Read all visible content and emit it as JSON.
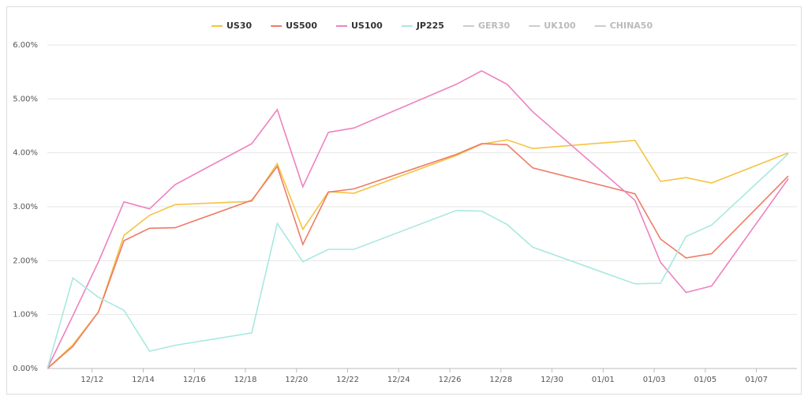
{
  "chart_data": {
    "type": "line",
    "x": [
      "12/10",
      "12/11",
      "12/12",
      "12/13",
      "12/14",
      "12/15",
      "12/18",
      "12/19",
      "12/20",
      "12/21",
      "12/22",
      "12/26",
      "12/27",
      "12/28",
      "12/29",
      "01/02",
      "01/03",
      "01/04",
      "01/05",
      "01/08"
    ],
    "xlim": [
      "12/10",
      "01/08"
    ],
    "xticks": [
      "12/12",
      "12/14",
      "12/16",
      "12/18",
      "12/20",
      "12/22",
      "12/24",
      "12/26",
      "12/28",
      "12/30",
      "01/01",
      "01/03",
      "01/05",
      "01/07"
    ],
    "ylim": [
      0,
      6
    ],
    "yticks": [
      {
        "value": 0,
        "label": "0.00%"
      },
      {
        "value": 1,
        "label": "1.00%"
      },
      {
        "value": 2,
        "label": "2.00%"
      },
      {
        "value": 3,
        "label": "3.00%"
      },
      {
        "value": 4,
        "label": "4.00%"
      },
      {
        "value": 5,
        "label": "5.00%"
      },
      {
        "value": 6,
        "label": "6.00%"
      }
    ],
    "grid": true,
    "legend": "top",
    "series": [
      {
        "name": "US30",
        "color": "#f5c342",
        "values": [
          0,
          0.44,
          1.05,
          2.47,
          2.84,
          3.04,
          3.1,
          3.8,
          2.58,
          3.28,
          3.25,
          3.95,
          4.16,
          4.24,
          4.08,
          4.23,
          3.47,
          3.54,
          3.44,
          4.0
        ]
      },
      {
        "name": "US500",
        "color": "#ee7b66",
        "values": [
          0,
          0.41,
          1.05,
          2.37,
          2.6,
          2.61,
          3.12,
          3.75,
          2.3,
          3.27,
          3.33,
          3.97,
          4.17,
          4.15,
          3.72,
          3.24,
          2.4,
          2.05,
          2.13,
          3.57
        ]
      },
      {
        "name": "US100",
        "color": "#ee82c0",
        "values": [
          0,
          0.98,
          1.98,
          3.09,
          2.96,
          3.41,
          4.17,
          4.8,
          3.37,
          4.38,
          4.46,
          5.27,
          5.52,
          5.27,
          4.76,
          3.12,
          1.97,
          1.41,
          1.53,
          3.52
        ]
      },
      {
        "name": "JP225",
        "color": "#a9e8e0",
        "values": [
          0,
          1.68,
          1.32,
          1.08,
          0.32,
          0.43,
          0.66,
          2.69,
          1.98,
          2.21,
          2.21,
          2.93,
          2.92,
          2.67,
          2.25,
          1.57,
          1.58,
          2.45,
          2.66,
          3.98
        ]
      }
    ],
    "hidden_series": [
      "GER30",
      "UK100",
      "CHINA50"
    ]
  }
}
